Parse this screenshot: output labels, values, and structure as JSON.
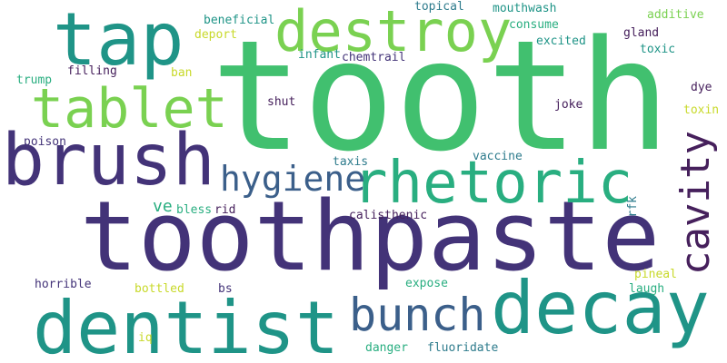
{
  "palette": {
    "background": "#ffffff",
    "dark_purple": "#433378",
    "deep_purple": "#46205c",
    "teal": "#1f9487",
    "blue_teal": "#2d7b8c",
    "slate": "#3b5f8a",
    "green": "#41c06f",
    "sea_green": "#29ae80",
    "lime": "#7ad151",
    "yellow": "#c8d92a"
  },
  "words": {
    "tooth": "tooth",
    "toothpaste": "toothpaste",
    "tap": "tap",
    "brush": "brush",
    "dentist": "dentist",
    "decay": "decay",
    "destroy": "destroy",
    "tablet": "tablet",
    "rhetoric": "rhetoric",
    "bunch": "bunch",
    "cavity": "cavity",
    "hygiene": "hygiene",
    "beneficial": "beneficial",
    "deport": "deport",
    "topical": "topical",
    "mouthwash": "mouthwash",
    "consume": "consume",
    "additive": "additive",
    "gland": "gland",
    "excited": "excited",
    "toxic": "toxic",
    "filling": "filling",
    "ban": "ban",
    "infant": "infant",
    "chemtrail": "chemtrail",
    "trump": "trump",
    "dye": "dye",
    "toxin": "toxin",
    "shut": "shut",
    "joke": "joke",
    "poison": "poison",
    "vaccine": "vaccine",
    "taxis": "taxis",
    "ve": "ve",
    "bless": "bless",
    "rid": "rid",
    "rfk": "rfk",
    "calisthenic": "calisthenic",
    "horrible": "horrible",
    "expose": "expose",
    "pineal": "pineal",
    "bottled": "bottled",
    "bs": "bs",
    "laugh": "laugh",
    "iq": "iq",
    "danger": "danger",
    "fluoridate": "fluoridate"
  }
}
